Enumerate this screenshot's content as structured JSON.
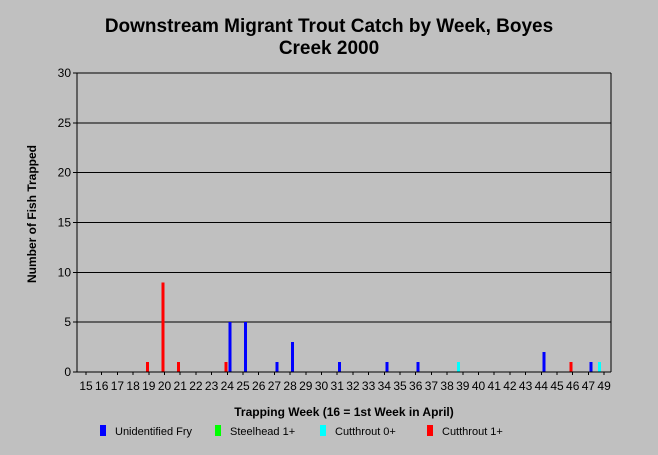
{
  "chart_data": {
    "type": "bar",
    "title_lines": [
      "Downstream Migrant Trout Catch by Week, Boyes",
      "Creek 2000"
    ],
    "xlabel": "Trapping Week (16 = 1st Week in April)",
    "ylabel": "Number of Fish Trapped",
    "categories": [
      "15",
      "16",
      "17",
      "18",
      "19",
      "20",
      "21",
      "22",
      "23",
      "24",
      "25",
      "26",
      "27",
      "28",
      "29",
      "30",
      "31",
      "32",
      "33",
      "34",
      "35",
      "36",
      "37",
      "38",
      "39",
      "40",
      "41",
      "42",
      "43",
      "44",
      "45",
      "46",
      "47",
      "49"
    ],
    "ylim": [
      0,
      30
    ],
    "yticks": [
      0,
      5,
      10,
      15,
      20,
      25,
      30
    ],
    "grid": true,
    "legend_position": "bottom",
    "series": [
      {
        "name": "Unidentified Fry",
        "color": "#0000ff",
        "values": [
          0,
          0,
          0,
          0,
          0,
          0,
          0,
          0,
          0,
          5,
          5,
          0,
          1,
          3,
          0,
          0,
          1,
          0,
          0,
          1,
          0,
          1,
          0,
          0,
          0,
          0,
          0,
          0,
          0,
          2,
          0,
          0,
          1,
          0
        ]
      },
      {
        "name": "Steelhead 1+",
        "color": "#00ff00",
        "values": [
          0,
          0,
          0,
          0,
          0,
          0,
          0,
          0,
          0,
          0,
          0,
          0,
          0,
          0,
          0,
          0,
          0,
          0,
          0,
          0,
          0,
          0,
          0,
          0,
          0,
          0,
          0,
          0,
          0,
          0,
          0,
          0,
          0,
          0
        ]
      },
      {
        "name": "Cutthrout 0+",
        "color": "#00ffff",
        "values": [
          0,
          0,
          0,
          0,
          0,
          0,
          0,
          0,
          0,
          0,
          0,
          0,
          0,
          0,
          0,
          0,
          0,
          0,
          0,
          0,
          0,
          0,
          0,
          0,
          1,
          0,
          0,
          0,
          0,
          0,
          0,
          0,
          0,
          1
        ]
      },
      {
        "name": "Cutthrout 1+",
        "color": "#ff0000",
        "values": [
          0,
          0,
          0,
          0,
          1,
          9,
          1,
          0,
          0,
          1,
          0,
          0,
          0,
          0,
          0,
          0,
          0,
          0,
          0,
          0,
          0,
          0,
          0,
          0,
          0,
          0,
          0,
          0,
          0,
          0,
          0,
          1,
          0,
          0
        ]
      }
    ]
  }
}
